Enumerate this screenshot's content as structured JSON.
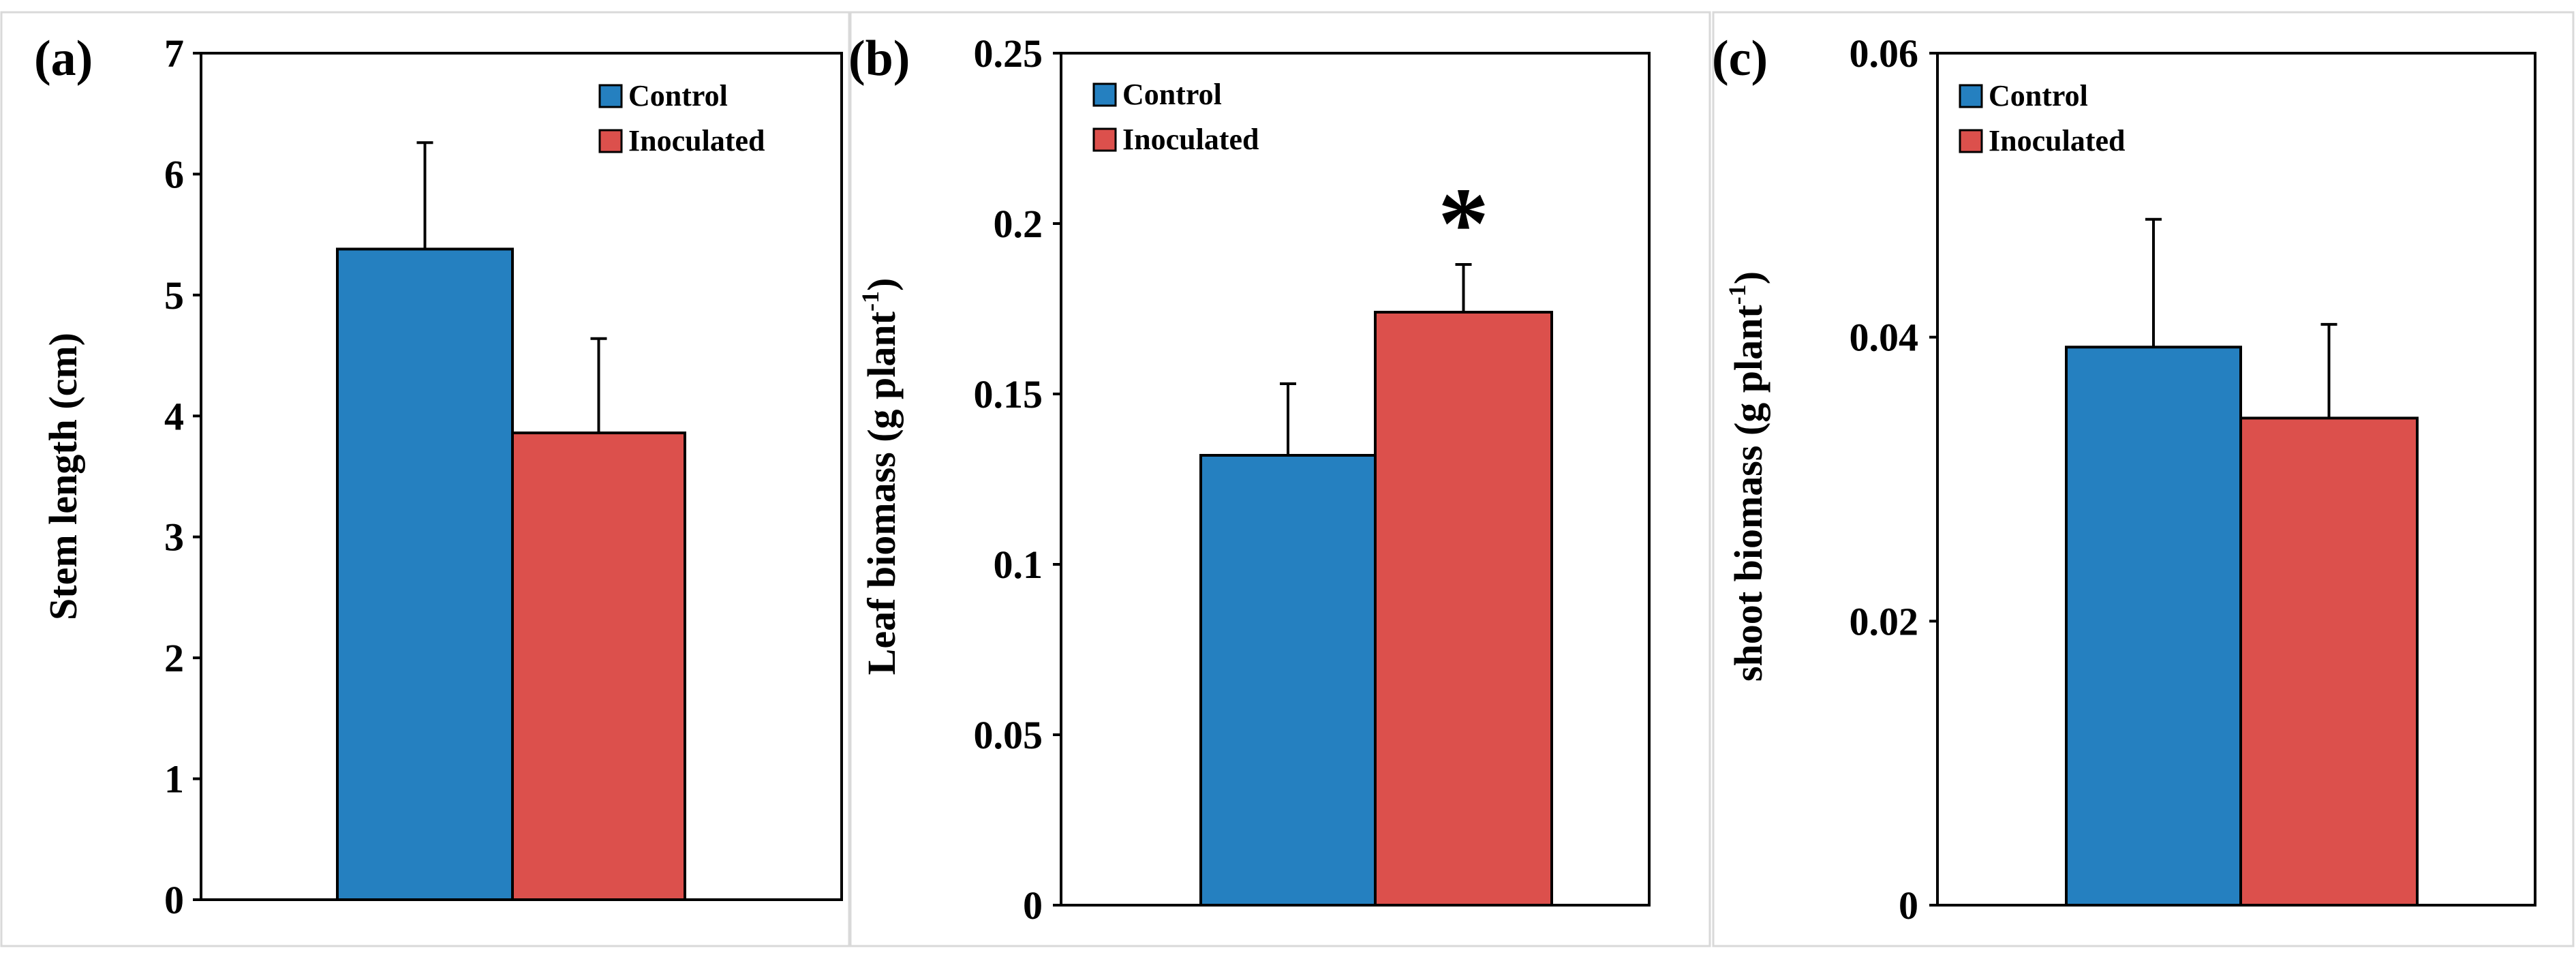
{
  "colors": {
    "control": "#2580c0",
    "inoculated": "#dc504c",
    "axis": "#000000",
    "frame": "#d9d9d9"
  },
  "chart_data": [
    {
      "type": "bar",
      "panel_label": "(a)",
      "ylabel": "Stem length (cm)",
      "ylabel_sup": "",
      "ylabel_tail": "",
      "ylim": [
        0,
        7
      ],
      "yticks": [
        0,
        1,
        2,
        3,
        4,
        5,
        6,
        7
      ],
      "ytick_labels": [
        "0",
        "1",
        "2",
        "3",
        "4",
        "5",
        "6",
        "7"
      ],
      "legend": [
        "Control",
        "Inoculated"
      ],
      "legend_position": "top-right",
      "series": [
        {
          "name": "Control",
          "value": 5.38,
          "error": 0.88,
          "significance": ""
        },
        {
          "name": "Inoculated",
          "value": 3.86,
          "error": 0.78,
          "significance": ""
        }
      ]
    },
    {
      "type": "bar",
      "panel_label": "(b)",
      "ylabel": "Leaf  biomass  (g plant",
      "ylabel_sup": "-1",
      "ylabel_tail": ")",
      "ylim": [
        0,
        0.25
      ],
      "yticks": [
        0,
        0.05,
        0.1,
        0.15,
        0.2,
        0.25
      ],
      "ytick_labels": [
        "0",
        "0.05",
        "0.1",
        "0.15",
        "0.2",
        "0.25"
      ],
      "legend": [
        "Control",
        "Inoculated"
      ],
      "legend_position": "top-left",
      "series": [
        {
          "name": "Control",
          "value": 0.132,
          "error": 0.021,
          "significance": ""
        },
        {
          "name": "Inoculated",
          "value": 0.174,
          "error": 0.014,
          "significance": "*"
        }
      ]
    },
    {
      "type": "bar",
      "panel_label": "(c)",
      "ylabel": "shoot  biomass  (g plant",
      "ylabel_sup": "-1",
      "ylabel_tail": ")",
      "ylim": [
        0,
        0.06
      ],
      "yticks": [
        0,
        0.02,
        0.04,
        0.06
      ],
      "ytick_labels": [
        "0",
        "0.02",
        "0.04",
        "0.06"
      ],
      "legend": [
        "Control",
        "Inoculated"
      ],
      "legend_position": "top-left",
      "series": [
        {
          "name": "Control",
          "value": 0.0393,
          "error": 0.009,
          "significance": ""
        },
        {
          "name": "Inoculated",
          "value": 0.0343,
          "error": 0.0066,
          "significance": ""
        }
      ]
    }
  ]
}
